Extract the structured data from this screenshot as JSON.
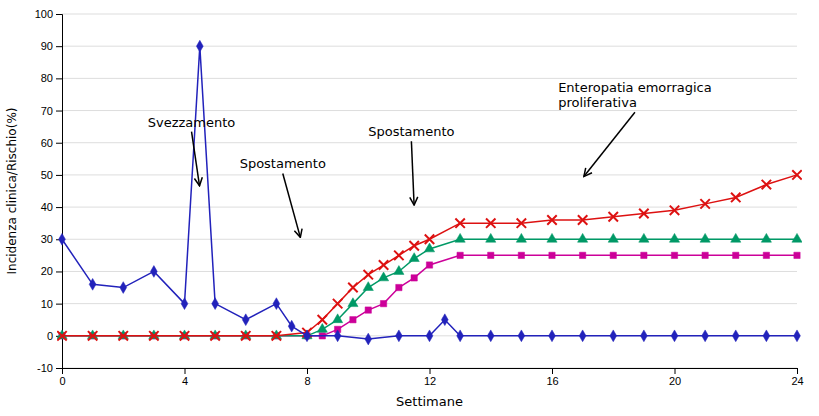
{
  "chart_data": {
    "type": "line",
    "xlabel": "Settimane",
    "ylabel": "Incidenza clinica/Rischio(%)",
    "xlim": [
      0,
      24
    ],
    "ylim": [
      -10,
      100
    ],
    "xticks": [
      0,
      4,
      8,
      12,
      16,
      20,
      24
    ],
    "yticks": [
      -10,
      0,
      10,
      20,
      30,
      40,
      50,
      60,
      70,
      80,
      90,
      100
    ],
    "grid": true,
    "series": [
      {
        "color": "#2222bb",
        "marker": "diamond",
        "x": [
          0,
          1,
          2,
          3,
          4,
          4.5,
          5,
          6,
          7,
          7.5,
          8,
          9,
          10,
          11,
          12,
          12.5,
          13,
          14,
          15,
          16,
          17,
          18,
          19,
          20,
          21,
          22,
          23,
          24
        ],
        "values": [
          30,
          16,
          15,
          20,
          10,
          90,
          10,
          5,
          10,
          3,
          0,
          0,
          -1,
          0,
          0,
          5,
          0,
          0,
          0,
          0,
          0,
          0,
          0,
          0,
          0,
          0,
          0,
          0
        ]
      },
      {
        "color": "#dd1111",
        "marker": "x",
        "x": [
          0,
          1,
          2,
          3,
          4,
          5,
          6,
          7,
          8,
          8.5,
          9,
          9.5,
          10,
          10.5,
          11,
          11.5,
          12,
          13,
          14,
          15,
          16,
          17,
          18,
          19,
          20,
          21,
          22,
          23,
          24
        ],
        "values": [
          0,
          0,
          0,
          0,
          0,
          0,
          0,
          0,
          1,
          5,
          10,
          15,
          19,
          22,
          25,
          28,
          30,
          35,
          35,
          35,
          36,
          36,
          37,
          38,
          39,
          41,
          43,
          47,
          50
        ]
      },
      {
        "color": "#009966",
        "marker": "triangle",
        "x": [
          0,
          1,
          2,
          3,
          4,
          5,
          6,
          7,
          8,
          8.5,
          9,
          9.5,
          10,
          10.5,
          11,
          11.5,
          12,
          13,
          14,
          15,
          16,
          17,
          18,
          19,
          20,
          21,
          22,
          23,
          24
        ],
        "values": [
          0,
          0,
          0,
          0,
          0,
          0,
          0,
          0,
          0,
          2,
          5,
          10,
          15,
          18,
          20,
          24,
          27,
          30,
          30,
          30,
          30,
          30,
          30,
          30,
          30,
          30,
          30,
          30,
          30
        ]
      },
      {
        "color": "#cc0099",
        "marker": "square",
        "x": [
          0,
          1,
          2,
          3,
          4,
          5,
          6,
          7,
          8,
          8.5,
          9,
          9.5,
          10,
          10.5,
          11,
          11.5,
          12,
          13,
          14,
          15,
          16,
          17,
          18,
          19,
          20,
          21,
          22,
          23,
          24
        ],
        "values": [
          0,
          0,
          0,
          0,
          0,
          0,
          0,
          0,
          0,
          0,
          2,
          5,
          8,
          10,
          15,
          18,
          22,
          25,
          25,
          25,
          25,
          25,
          25,
          25,
          25,
          25,
          25,
          25,
          25
        ]
      }
    ],
    "annotations": [
      {
        "text": "Svezzamento",
        "xy": [
          4.5,
          46
        ],
        "xytext": [
          2.8,
          65
        ]
      },
      {
        "text": "Spostamento",
        "xy": [
          7.8,
          30
        ],
        "xytext": [
          5.8,
          52
        ]
      },
      {
        "text": "Spostamento",
        "xy": [
          11.5,
          40
        ],
        "xytext": [
          10.0,
          62
        ]
      },
      {
        "text": "Enteropatia emorragica\nproliferativa",
        "xy": [
          17.0,
          49
        ],
        "xytext": [
          16.2,
          71
        ]
      }
    ]
  }
}
